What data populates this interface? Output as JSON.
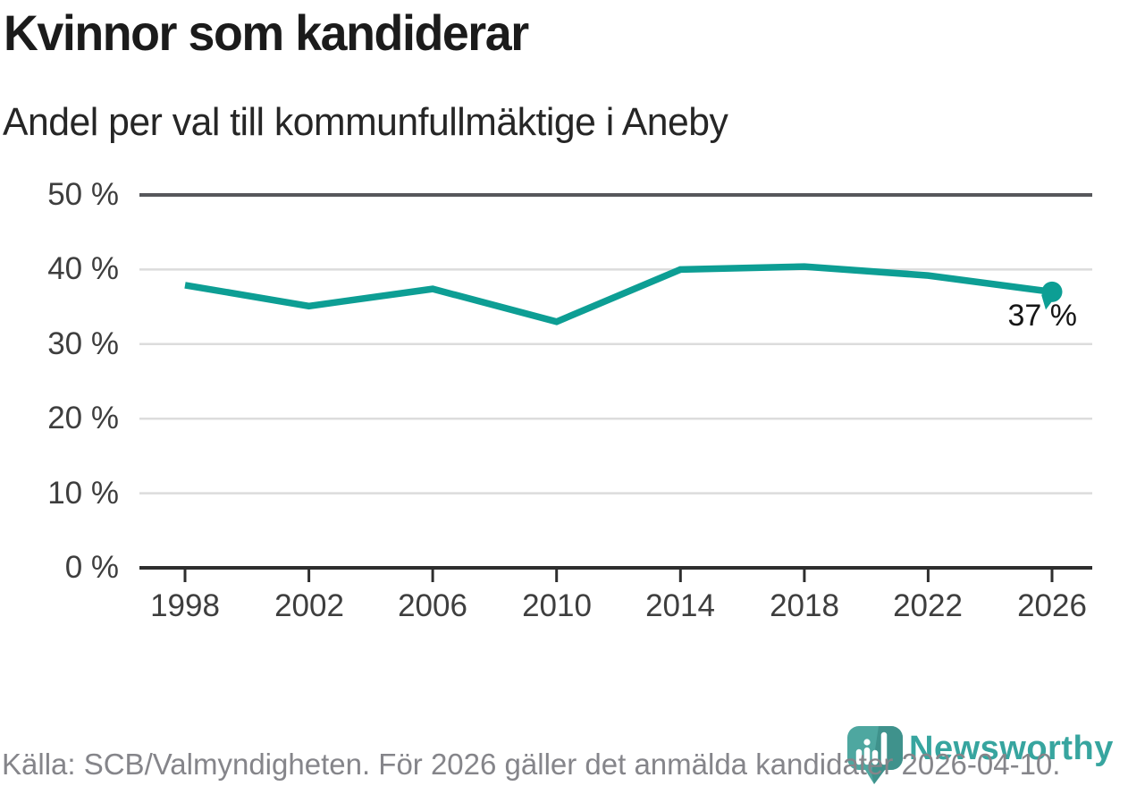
{
  "title": "Kvinnor som kandiderar",
  "subtitle": "Andel per val till kommunfullmäktige i Aneby",
  "footer": {
    "source": "Källa: SCB/Valmyndigheten. För 2026 gäller det anmälda kandidater 2026-04-10."
  },
  "logo": {
    "brand": "Newsworthy",
    "icon": "newsworthy-pin-barchart-icon"
  },
  "colors": {
    "line": "#0d9e94",
    "grid": "#dcdcdc",
    "grid_strong": "#56575b",
    "axis": "#2e2e2e",
    "tick_label": "#3e3e3e",
    "title_text": "#1b1b1b",
    "footer_text": "#85858a",
    "logo_pin": "#4ea7a0",
    "logo_pin_shade": "#3f928c",
    "logo_text": "#37a59f"
  },
  "chart_data": {
    "type": "line",
    "title": "Kvinnor som kandiderar",
    "subtitle": "Andel per val till kommunfullmäktige i Aneby",
    "x": [
      1998,
      2002,
      2006,
      2010,
      2014,
      2018,
      2022,
      2026
    ],
    "xtick_labels": [
      "1998",
      "2002",
      "2006",
      "2010",
      "2014",
      "2018",
      "2022",
      "2026"
    ],
    "values": [
      37.9,
      35.1,
      37.4,
      33.0,
      40.0,
      40.4,
      39.2,
      37.0
    ],
    "xlabel": "",
    "ylabel": "",
    "ylim": [
      0,
      50
    ],
    "yticks": [
      0,
      10,
      20,
      30,
      40,
      50
    ],
    "ytick_labels": [
      "0 %",
      "10 %",
      "20 %",
      "30 %",
      "40 %",
      "50 %"
    ],
    "grid": "horizontal",
    "legend": "none",
    "end_label": "37 %",
    "end_marker": "dot-with-tail"
  }
}
